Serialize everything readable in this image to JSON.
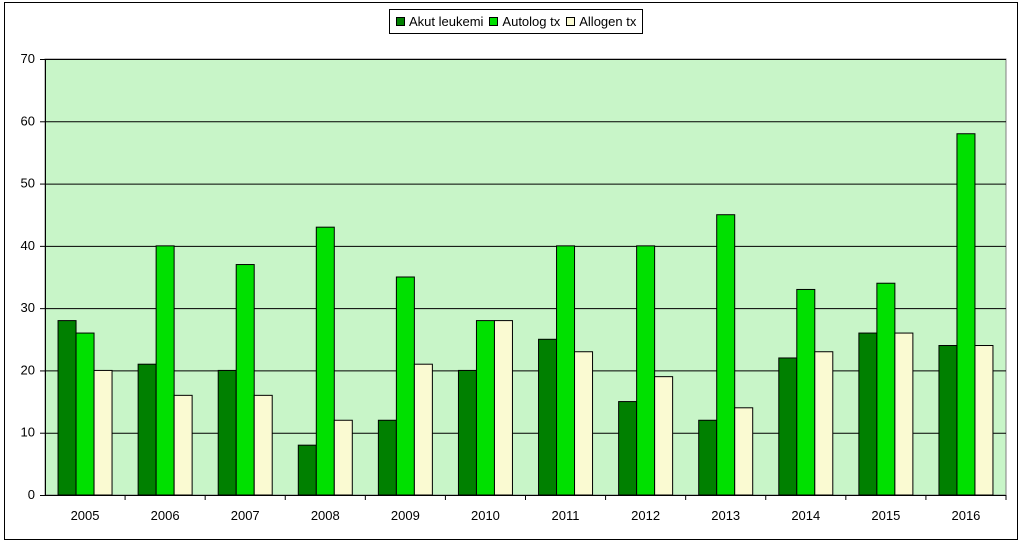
{
  "chart_data": {
    "type": "bar",
    "title": "",
    "xlabel": "",
    "ylabel": "",
    "ylim": [
      0,
      70
    ],
    "yticks": [
      0,
      10,
      20,
      30,
      40,
      50,
      60,
      70
    ],
    "grid": true,
    "legend_position": "top-center",
    "plot_background": "#c8f5c8",
    "categories": [
      "2005",
      "2006",
      "2007",
      "2008",
      "2009",
      "2010",
      "2011",
      "2012",
      "2013",
      "2014",
      "2015",
      "2016"
    ],
    "series": [
      {
        "name": "Akut leukemi",
        "color": "#008000",
        "values": [
          28,
          21,
          20,
          8,
          12,
          20,
          25,
          15,
          12,
          22,
          26,
          24
        ]
      },
      {
        "name": "Autolog tx",
        "color": "#00e000",
        "values": [
          26,
          40,
          37,
          43,
          35,
          28,
          40,
          40,
          45,
          33,
          34,
          58
        ]
      },
      {
        "name": "Allogen tx",
        "color": "#fafad2",
        "values": [
          20,
          16,
          16,
          12,
          21,
          28,
          23,
          19,
          14,
          23,
          26,
          24
        ]
      }
    ]
  }
}
